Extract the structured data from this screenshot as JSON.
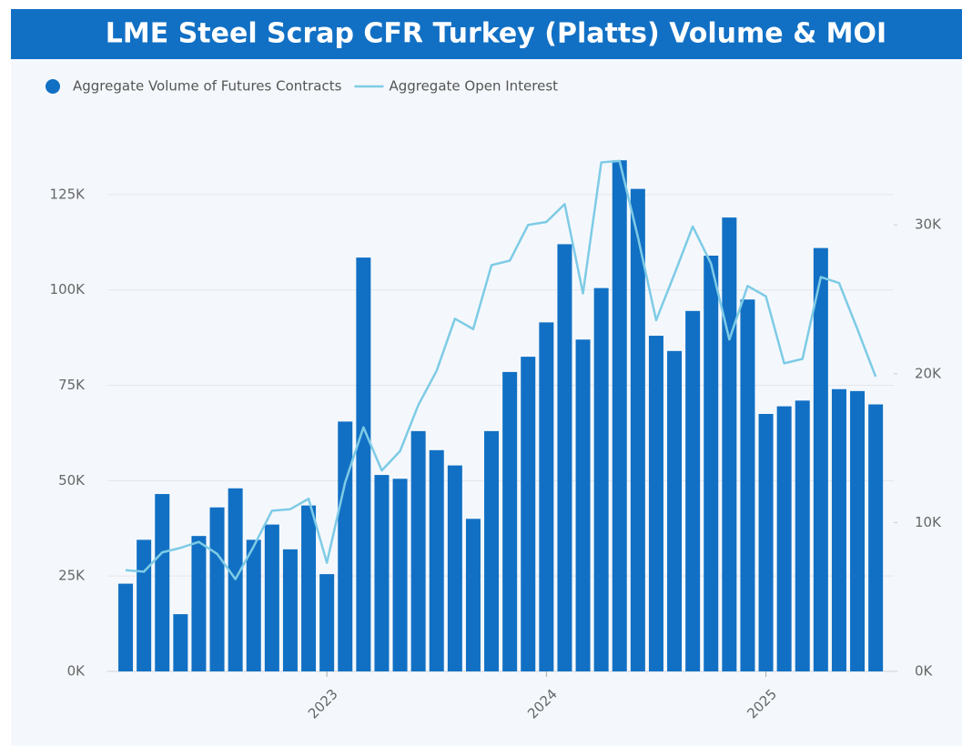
{
  "chart_data": {
    "type": "bar_line",
    "title": "LME Steel Scrap CFR Turkey (Platts) Volume & MOI",
    "categories": [
      null,
      null,
      null,
      null,
      null,
      null,
      null,
      null,
      null,
      null,
      null,
      "2023",
      null,
      null,
      null,
      null,
      null,
      null,
      null,
      null,
      null,
      null,
      null,
      "2024",
      null,
      null,
      null,
      null,
      null,
      null,
      null,
      null,
      null,
      null,
      null,
      "2025",
      null,
      null,
      null,
      null,
      null,
      null
    ],
    "series": [
      {
        "name": "Aggregate Volume of Futures Contracts",
        "type": "bar",
        "color": "#1170c4",
        "axis": "y",
        "values": [
          23000,
          34500,
          46500,
          15000,
          35500,
          43000,
          48000,
          34500,
          38500,
          32000,
          43500,
          25500,
          65500,
          108500,
          51500,
          50500,
          63000,
          58000,
          54000,
          40000,
          63000,
          78500,
          82500,
          91500,
          112000,
          87000,
          100500,
          134000,
          126500,
          88000,
          84000,
          94500,
          109000,
          119000,
          97500,
          67500,
          69500,
          71000,
          111000,
          74000,
          73500,
          70000
        ]
      },
      {
        "name": "Aggregate Open Interest",
        "type": "line",
        "color": "#7ecbe6",
        "axis": "y2",
        "values": [
          6800,
          6700,
          8000,
          8300,
          8700,
          7900,
          6200,
          8400,
          10800,
          10900,
          11600,
          7300,
          12700,
          16400,
          13500,
          14800,
          17900,
          20200,
          23700,
          23000,
          27300,
          27600,
          30000,
          30200,
          31400,
          25400,
          34200,
          34300,
          29200,
          23600,
          26700,
          29900,
          27400,
          22300,
          25900,
          25200,
          20700,
          21000,
          26500,
          26100,
          23000,
          19800
        ]
      }
    ],
    "ylim": [
      0,
      135000
    ],
    "yticks": [
      {
        "value": 0,
        "label": "0K"
      },
      {
        "value": 25000,
        "label": "25K"
      },
      {
        "value": 50000,
        "label": "50K"
      },
      {
        "value": 75000,
        "label": "75K"
      },
      {
        "value": 100000,
        "label": "100K"
      },
      {
        "value": 125000,
        "label": "125K"
      }
    ],
    "y2lim": [
      0,
      34600
    ],
    "y2ticks": [
      {
        "value": 0,
        "label": "0K"
      },
      {
        "value": 10000,
        "label": "10K"
      },
      {
        "value": 20000,
        "label": "20K"
      },
      {
        "value": 30000,
        "label": "30K"
      }
    ],
    "grid": true,
    "legend": "top-left"
  }
}
